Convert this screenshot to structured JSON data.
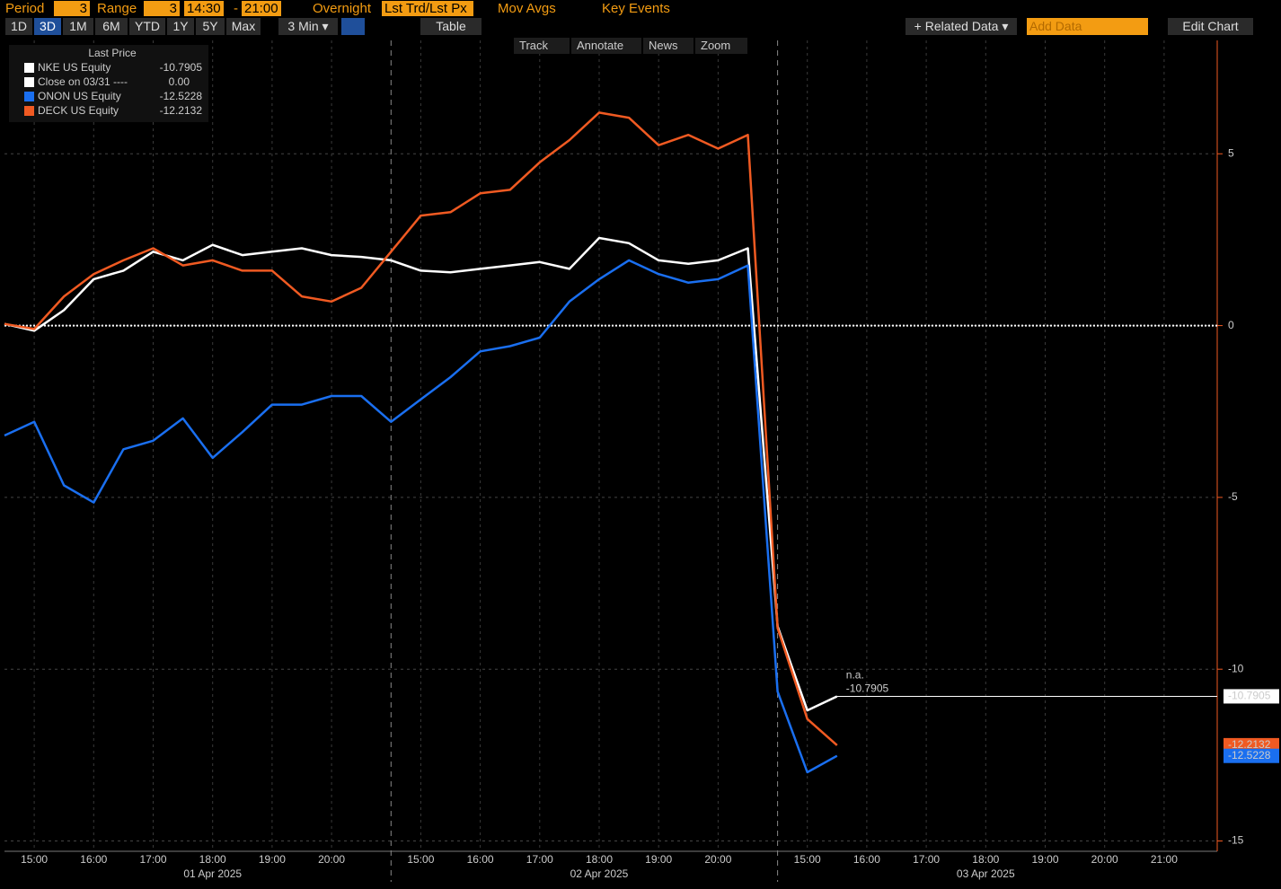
{
  "toolbar": {
    "period_label": "Period",
    "period_value": "3",
    "range_label": "Range",
    "range_value": "3",
    "start_time": "14:30",
    "dash": "-",
    "end_time": "21:00",
    "overnight": "Overnight",
    "price_mode": "Lst Trd/Lst Px",
    "mov_avgs": "Mov Avgs",
    "key_events": "Key Events",
    "ranges": [
      "1D",
      "3D",
      "1M",
      "6M",
      "YTD",
      "1Y",
      "5Y",
      "Max"
    ],
    "interval": "3 Min ▾",
    "table": "Table",
    "related_data": "+ Related Data ▾",
    "add_data": "Add Data",
    "edit_chart": "Edit Chart",
    "tools": [
      "Track",
      "Annotate",
      "News",
      "Zoom"
    ]
  },
  "chart_data": {
    "type": "line",
    "legend_title": "Last Price",
    "categories": [
      null,
      "15:00",
      null,
      "16:00",
      null,
      "17:00",
      null,
      "18:00",
      null,
      "19:00",
      null,
      "20:00",
      null,
      null,
      "15:00",
      null,
      "16:00",
      null,
      "17:00",
      null,
      "18:00",
      null,
      "19:00",
      null,
      "20:00",
      null,
      null,
      "15:00",
      null,
      "16:00",
      null,
      "17:00",
      null,
      "18:00",
      null,
      "19:00",
      null,
      "20:00",
      null,
      "21:00",
      null
    ],
    "days": [
      "01 Apr 2025",
      "02 Apr 2025",
      "03 Apr 2025"
    ],
    "series": [
      {
        "name": "NKE US Equity",
        "color": "#ffffff",
        "last_price": -10.7905,
        "values": [
          0.05,
          -0.15,
          0.45,
          1.35,
          1.6,
          2.15,
          1.9,
          2.35,
          2.05,
          2.15,
          2.25,
          2.05,
          2.0,
          1.9,
          1.6,
          1.55,
          1.65,
          1.75,
          1.85,
          1.65,
          2.55,
          2.4,
          1.9,
          1.8,
          1.9,
          2.25,
          -8.75,
          -11.2,
          -10.7905,
          null,
          null,
          null,
          null,
          null,
          null,
          null,
          null,
          null,
          null,
          null,
          null
        ]
      },
      {
        "name": "ONON US Equity",
        "color": "#1a6ff0",
        "last_price": -12.5228,
        "values": [
          -3.2,
          -2.8,
          -4.65,
          -5.15,
          -3.6,
          -3.35,
          -2.7,
          -3.85,
          -3.1,
          -2.3,
          -2.3,
          -2.05,
          -2.05,
          -2.8,
          -2.15,
          -1.5,
          -0.75,
          -0.6,
          -0.35,
          0.7,
          1.35,
          1.9,
          1.5,
          1.25,
          1.35,
          1.75,
          -10.65,
          -13.0,
          -12.5228,
          null,
          null,
          null,
          null,
          null,
          null,
          null,
          null,
          null,
          null,
          null,
          null
        ]
      },
      {
        "name": "DECK US Equity",
        "color": "#f05a22",
        "last_price": -12.2132,
        "values": [
          0.05,
          -0.1,
          0.85,
          1.5,
          1.9,
          2.25,
          1.75,
          1.9,
          1.6,
          1.6,
          0.85,
          0.7,
          1.1,
          2.15,
          3.2,
          3.3,
          3.85,
          3.95,
          4.75,
          5.4,
          6.2,
          6.05,
          5.25,
          5.55,
          5.15,
          5.55,
          -8.8,
          -11.45,
          -12.2132,
          null,
          null,
          null,
          null,
          null,
          null,
          null,
          null,
          null,
          null,
          null,
          null
        ]
      }
    ],
    "reference_line": {
      "name": "Close on 03/31 ----",
      "color": "#ffffff",
      "value": {
        "value": 0,
        "label": "0.00"
      }
    },
    "annotation": "n.a.",
    "ylim": [
      -15.3,
      8.3
    ],
    "yticks": [
      -15,
      -10,
      -5,
      0,
      5
    ],
    "grid": true
  }
}
